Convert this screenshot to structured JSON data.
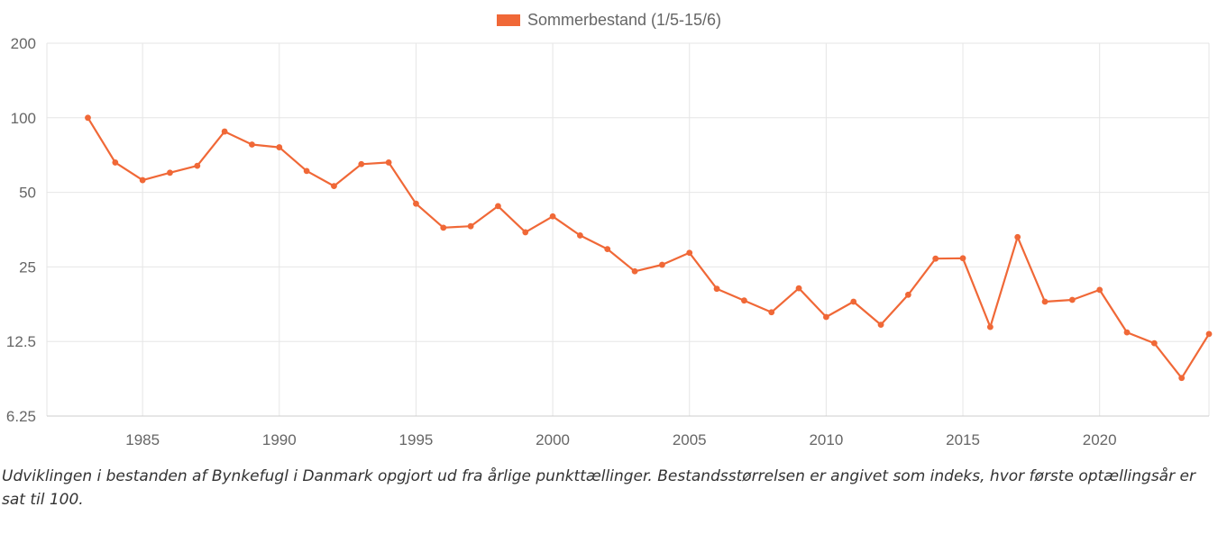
{
  "chart_data": {
    "type": "line",
    "y_scale": "log2",
    "ylim": [
      6.25,
      200
    ],
    "y_ticks": [
      "200",
      "100",
      "50",
      "25",
      "12.5",
      "6.25"
    ],
    "x_ticks": [
      "1985",
      "1990",
      "1995",
      "2000",
      "2005",
      "2010",
      "2015",
      "2020"
    ],
    "xlim": [
      1981.5,
      2024
    ],
    "grid": true,
    "legend_position": "top",
    "series": [
      {
        "name": "Sommerbestand (1/5-15/6)",
        "color": "#f06837",
        "x": [
          1983,
          1984,
          1985,
          1986,
          1987,
          1988,
          1989,
          1990,
          1991,
          1992,
          1993,
          1994,
          1995,
          1996,
          1997,
          1998,
          1999,
          2000,
          2001,
          2002,
          2003,
          2004,
          2005,
          2006,
          2007,
          2008,
          2009,
          2010,
          2011,
          2012,
          2013,
          2014,
          2015,
          2016,
          2017,
          2018,
          2019,
          2020,
          2021,
          2022,
          2023,
          2024
        ],
        "y": [
          100,
          66,
          56,
          60,
          64,
          88,
          78,
          76,
          61,
          53,
          65,
          66,
          45,
          36,
          36.5,
          44,
          34.5,
          40,
          33.5,
          29.5,
          24,
          25.5,
          28.5,
          20.4,
          18.3,
          16.4,
          20.5,
          15.7,
          18.1,
          14.6,
          19.3,
          27,
          27.1,
          14.3,
          33,
          18.1,
          18.4,
          20.2,
          13.6,
          12.3,
          8.9,
          13.4
        ]
      }
    ]
  },
  "caption": "Udviklingen i bestanden af Bynkefugl i Danmark opgjort ud fra årlige punkttællinger. Bestandsstørrelsen er angivet som indeks, hvor første optællingsår er sat til 100."
}
